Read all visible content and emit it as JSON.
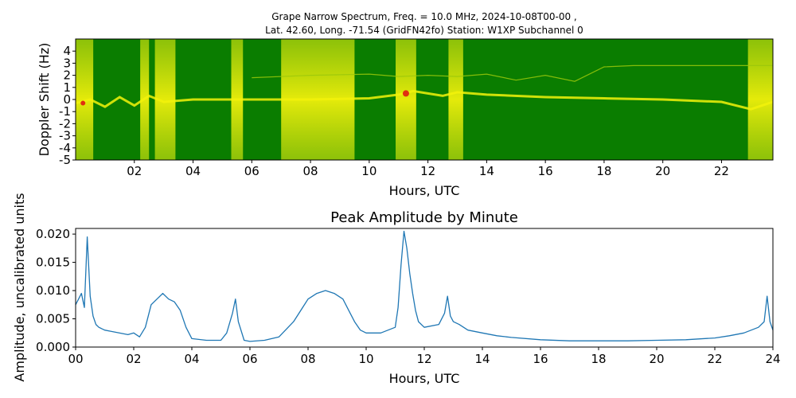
{
  "chart_data": [
    {
      "type": "heatmap",
      "title_lines": [
        "Grape Narrow Spectrum, Freq. = 10.0 MHz, 2024-10-08T00-00 ,",
        "Lat.  42.60, Long. -71.54 (GridFN42fo) Station: W1XP Subchannel 0"
      ],
      "xlabel": "Hours, UTC",
      "ylabel": "Doppler Shift (Hz)",
      "xlim": [
        0,
        23.75
      ],
      "ylim": [
        -5,
        5
      ],
      "x_ticks": [
        2,
        4,
        6,
        8,
        10,
        12,
        14,
        16,
        18,
        20,
        22
      ],
      "x_tick_labels": [
        "02",
        "04",
        "06",
        "08",
        "10",
        "12",
        "14",
        "16",
        "18",
        "20",
        "22"
      ],
      "y_ticks": [
        4,
        3,
        2,
        1,
        0,
        -1,
        -2,
        -3,
        -4,
        -5
      ],
      "y_tick_labels": [
        "4",
        "3",
        "2",
        "1",
        "0",
        "-1",
        "-2",
        "-3",
        "-4",
        "-5"
      ],
      "colors": {
        "background": "#0a7d00",
        "mid": "#9bc80a",
        "high": "#f2f20a",
        "peak": "#e03010"
      },
      "bright_bands_hours": [
        [
          0.0,
          0.6
        ],
        [
          2.2,
          2.5
        ],
        [
          2.7,
          3.4
        ],
        [
          5.3,
          5.7
        ],
        [
          7.0,
          9.5
        ],
        [
          10.9,
          11.6
        ],
        [
          12.7,
          13.2
        ],
        [
          22.9,
          23.75
        ]
      ],
      "traces": [
        {
          "name": "carrier",
          "x": [
            0,
            0.5,
            1,
            1.5,
            2,
            2.5,
            3,
            4,
            6,
            8,
            10,
            11,
            11.5,
            12,
            12.5,
            13,
            14,
            16,
            18,
            20,
            22,
            23,
            23.75
          ],
          "y": [
            -0.3,
            0.0,
            -0.6,
            0.2,
            -0.5,
            0.3,
            -0.2,
            0.0,
            0.0,
            0.0,
            0.1,
            0.4,
            0.7,
            0.5,
            0.3,
            0.6,
            0.4,
            0.2,
            0.1,
            0.0,
            -0.2,
            -0.8,
            -0.2
          ]
        },
        {
          "name": "upper-mode",
          "x": [
            6,
            8,
            10,
            11,
            12,
            13,
            14,
            15,
            16,
            17,
            18,
            19,
            20,
            21,
            22,
            23,
            23.75
          ],
          "y": [
            1.8,
            2.0,
            2.1,
            1.9,
            2.0,
            1.9,
            2.1,
            1.6,
            2.0,
            1.5,
            2.7,
            2.8,
            2.8,
            2.8,
            2.8,
            2.8,
            2.8
          ]
        }
      ]
    },
    {
      "type": "line",
      "title": "Peak Amplitude by Minute",
      "xlabel": "Hours, UTC",
      "ylabel": "Amplitude, uncalibrated units",
      "xlim": [
        0,
        24
      ],
      "ylim": [
        0,
        0.021
      ],
      "grid": false,
      "x_ticks": [
        0,
        2,
        4,
        6,
        8,
        10,
        12,
        14,
        16,
        18,
        20,
        22,
        24
      ],
      "x_tick_labels": [
        "00",
        "02",
        "04",
        "06",
        "08",
        "10",
        "12",
        "14",
        "16",
        "18",
        "20",
        "22",
        "24"
      ],
      "y_ticks": [
        0,
        0.005,
        0.01,
        0.015,
        0.02
      ],
      "y_tick_labels": [
        "0.000",
        "0.005",
        "0.010",
        "0.015",
        "0.020"
      ],
      "series": [
        {
          "color": "#1f77b4",
          "x": [
            0,
            0.1,
            0.2,
            0.3,
            0.4,
            0.5,
            0.6,
            0.7,
            0.8,
            1.0,
            1.2,
            1.5,
            1.8,
            2.0,
            2.2,
            2.4,
            2.6,
            2.8,
            3.0,
            3.2,
            3.4,
            3.6,
            3.8,
            4.0,
            4.5,
            5.0,
            5.2,
            5.4,
            5.5,
            5.6,
            5.8,
            6.0,
            6.5,
            7.0,
            7.5,
            8.0,
            8.3,
            8.6,
            8.9,
            9.2,
            9.4,
            9.6,
            9.8,
            10.0,
            10.5,
            11.0,
            11.1,
            11.2,
            11.3,
            11.4,
            11.5,
            11.6,
            11.7,
            11.8,
            12.0,
            12.5,
            12.7,
            12.8,
            12.9,
            13.0,
            13.2,
            13.5,
            14.0,
            14.5,
            15.0,
            16.0,
            17.0,
            18.0,
            19.0,
            20.0,
            21.0,
            22.0,
            22.5,
            23.0,
            23.5,
            23.7,
            23.8,
            23.9,
            24.0
          ],
          "values": [
            0.0075,
            0.0085,
            0.0095,
            0.007,
            0.0195,
            0.009,
            0.0055,
            0.004,
            0.0035,
            0.003,
            0.0028,
            0.0025,
            0.0022,
            0.0025,
            0.0018,
            0.0035,
            0.0075,
            0.0085,
            0.0095,
            0.0085,
            0.008,
            0.0065,
            0.0035,
            0.0015,
            0.0012,
            0.0012,
            0.0025,
            0.006,
            0.0085,
            0.0045,
            0.0012,
            0.001,
            0.0012,
            0.0018,
            0.0045,
            0.0085,
            0.0095,
            0.01,
            0.0095,
            0.0085,
            0.0065,
            0.0045,
            0.003,
            0.0025,
            0.0025,
            0.0035,
            0.007,
            0.0145,
            0.0205,
            0.0175,
            0.013,
            0.0095,
            0.0065,
            0.0045,
            0.0035,
            0.004,
            0.006,
            0.009,
            0.0055,
            0.0045,
            0.004,
            0.003,
            0.0025,
            0.002,
            0.0017,
            0.0013,
            0.0011,
            0.0011,
            0.0011,
            0.0012,
            0.0013,
            0.0016,
            0.002,
            0.0025,
            0.0035,
            0.0045,
            0.009,
            0.0045,
            0.003
          ]
        }
      ]
    }
  ]
}
